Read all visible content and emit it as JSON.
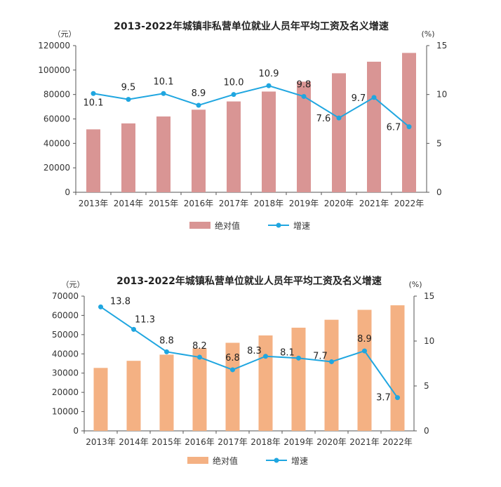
{
  "chart_data": [
    {
      "type": "bar",
      "title": "2013-2022年城镇非私营单位就业人员年平均工资及名义增速",
      "left_unit": "（元）",
      "right_unit": "(%)",
      "categories": [
        "2013年",
        "2014年",
        "2015年",
        "2016年",
        "2017年",
        "2018年",
        "2019年",
        "2020年",
        "2021年",
        "2022年"
      ],
      "series": [
        {
          "name": "绝对值",
          "kind": "bar",
          "axis": "left",
          "color": "#d99594",
          "values": [
            51483,
            56360,
            62029,
            67569,
            74318,
            82413,
            90501,
            97379,
            106837,
            114029
          ]
        },
        {
          "name": "增速",
          "kind": "line",
          "axis": "right",
          "color": "#1fa6e0",
          "values": [
            10.1,
            9.5,
            10.1,
            8.9,
            10.0,
            10.9,
            9.8,
            7.6,
            9.7,
            6.7
          ],
          "labels": [
            "10.1",
            "9.5",
            "10.1",
            "8.9",
            "10.0",
            "10.9",
            "9.8",
            "7.6",
            "9.7",
            "6.7"
          ]
        }
      ],
      "ylim_left": [
        0,
        120000
      ],
      "yticks_left": [
        "0",
        "20000",
        "40000",
        "60000",
        "80000",
        "100000",
        "120000"
      ],
      "ylim_right": [
        0,
        15
      ],
      "yticks_right": [
        "0",
        "5",
        "10",
        "15"
      ],
      "grid": false,
      "legend_position": "bottom"
    },
    {
      "type": "bar",
      "title": "2013-2022年城镇私营单位就业人员年平均工资及名义增速",
      "left_unit": "（元）",
      "right_unit": "(%)",
      "categories": [
        "2013年",
        "2014年",
        "2015年",
        "2016年",
        "2017年",
        "2018年",
        "2019年",
        "2020年",
        "2021年",
        "2022年"
      ],
      "series": [
        {
          "name": "绝对值",
          "kind": "bar",
          "axis": "left",
          "color": "#f4b183",
          "values": [
            32706,
            36390,
            39589,
            42833,
            45761,
            49575,
            53604,
            57727,
            62884,
            65237
          ]
        },
        {
          "name": "增速",
          "kind": "line",
          "axis": "right",
          "color": "#1fa6e0",
          "values": [
            13.8,
            11.3,
            8.8,
            8.2,
            6.8,
            8.3,
            8.1,
            7.7,
            8.9,
            3.7
          ],
          "labels": [
            "13.8",
            "11.3",
            "8.8",
            "8.2",
            "6.8",
            "8.3",
            "8.1",
            "7.7",
            "8.9",
            "3.7"
          ]
        }
      ],
      "ylim_left": [
        0,
        70000
      ],
      "yticks_left": [
        "0",
        "10000",
        "20000",
        "30000",
        "40000",
        "50000",
        "60000",
        "70000"
      ],
      "ylim_right": [
        0,
        15
      ],
      "yticks_right": [
        "0",
        "5",
        "10",
        "15"
      ],
      "grid": false,
      "legend_position": "bottom"
    }
  ]
}
